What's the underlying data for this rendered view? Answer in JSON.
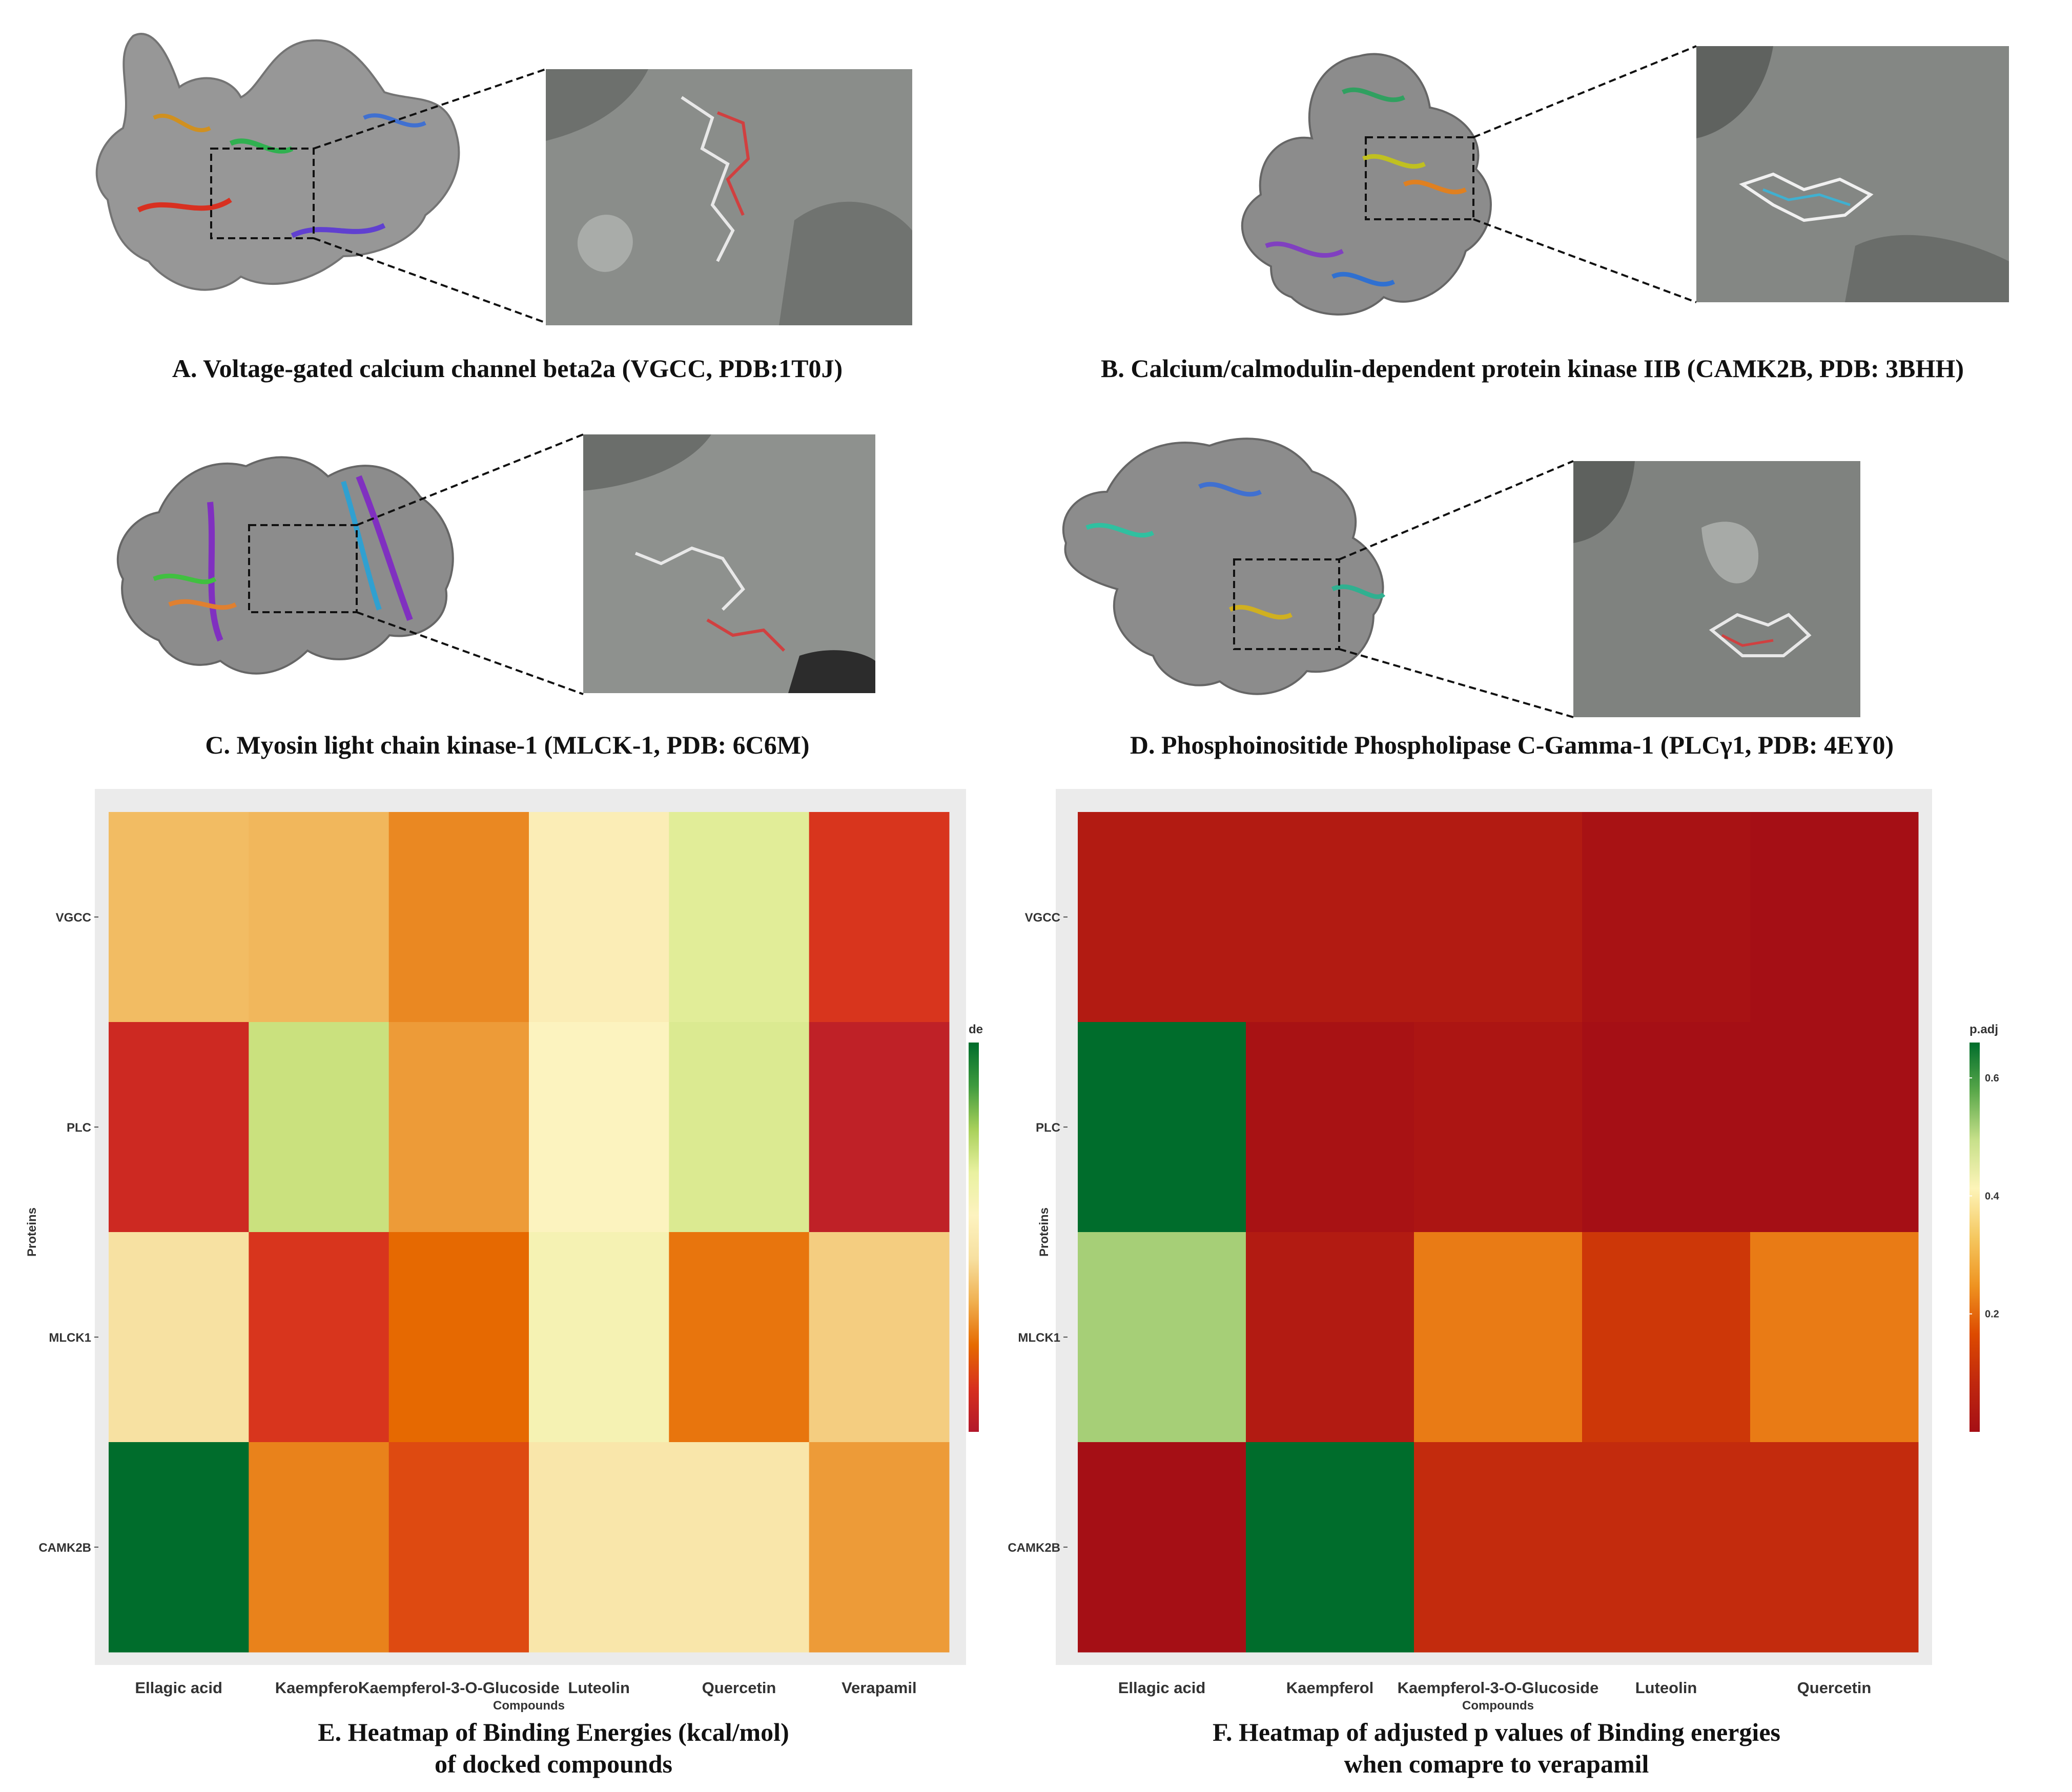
{
  "panels": {
    "a": {
      "caption": "A. Voltage-gated calcium channel beta2a (VGCC, PDB:1T0J)"
    },
    "b": {
      "caption": "B. Calcium/calmodulin-dependent protein kinase IIB (CAMK2B, PDB: 3BHH)"
    },
    "c": {
      "caption": "C. Myosin light chain kinase-1 (MLCK-1, PDB: 6C6M)"
    },
    "d": {
      "caption": "D. Phosphoinositide Phospholipase C-Gamma-1 (PLCγ1, PDB: 4EY0)"
    },
    "e": {
      "title_line1": "E. Heatmap of Binding Energies  (kcal/mol)",
      "title_line2": "of docked compounds"
    },
    "f": {
      "title_line1": "F. Heatmap of adjusted p values of Binding energies",
      "title_line2": "when comapre to verapamil"
    }
  },
  "chart_data": [
    {
      "type": "heatmap",
      "id": "binding-energies",
      "title": "E. Heatmap of Binding Energies  (kcal/mol) of docked compounds",
      "xlabel": "Compounds",
      "ylabel": "Proteins",
      "legend_title": "de",
      "x": [
        "Ellagic acid",
        "Kaempferol",
        "Kaempferol-3-O-Glucoside",
        "Luteolin",
        "Quercetin",
        "Verapamil"
      ],
      "y": [
        "VGCC",
        "PLC",
        "MLCK1",
        "CAMK2B"
      ],
      "color_scale": [
        "#b2182b",
        "#d7301f",
        "#e66a00",
        "#f0b050",
        "#f7e0a0",
        "#fdf3c0",
        "#e9f1a0",
        "#a8d05a",
        "#3e9a3e",
        "#006d2c"
      ],
      "values": [
        [
          0.36,
          0.35,
          0.27,
          0.52,
          0.68,
          0.12
        ],
        [
          0.08,
          0.72,
          0.3,
          0.56,
          0.69,
          0.04
        ],
        [
          0.45,
          0.12,
          0.22,
          0.6,
          0.24,
          0.4
        ],
        [
          1.0,
          0.26,
          0.16,
          0.48,
          0.48,
          0.3
        ]
      ]
    },
    {
      "type": "heatmap",
      "id": "adjusted-p-values",
      "title": "F. Heatmap of adjusted p values of Binding energies when comapre to verapamil",
      "xlabel": "Compounds",
      "ylabel": "Proteins",
      "legend_title": "p.adj",
      "legend_ticks": [
        0.2,
        0.4,
        0.6
      ],
      "legend_range": [
        0.0,
        0.66
      ],
      "x": [
        "Ellagic acid",
        "Kaempferol",
        "Kaempferol-3-O-Glucoside",
        "Luteolin",
        "Quercetin"
      ],
      "y": [
        "VGCC",
        "PLC",
        "MLCK1",
        "CAMK2B"
      ],
      "color_scale": [
        "#a50f15",
        "#c0280e",
        "#dd4a00",
        "#ef9320",
        "#f5c860",
        "#fdf4b8",
        "#c7e08a",
        "#5aa84a",
        "#006d2c"
      ],
      "values": [
        [
          0.04,
          0.04,
          0.04,
          0.01,
          0.0
        ],
        [
          0.66,
          0.01,
          0.02,
          0.0,
          0.0
        ],
        [
          0.52,
          0.04,
          0.22,
          0.12,
          0.22
        ],
        [
          0.0,
          0.66,
          0.09,
          0.09,
          0.09
        ]
      ]
    }
  ]
}
